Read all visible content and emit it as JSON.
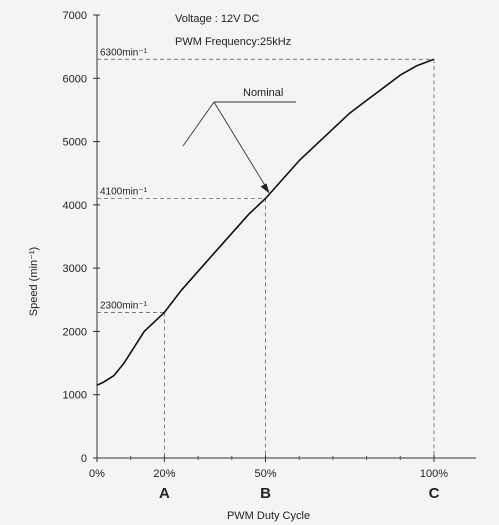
{
  "chart_data": {
    "type": "line",
    "xlabel": "PWM Duty Cycle",
    "ylabel": "Speed (min⁻¹)",
    "xlim": [
      0,
      100
    ],
    "ylim": [
      0,
      7000
    ],
    "x_ticks": [
      {
        "value": 0,
        "label": "0%"
      },
      {
        "value": 20,
        "label": "20%"
      },
      {
        "value": 50,
        "label": "50%"
      },
      {
        "value": 100,
        "label": "100%"
      }
    ],
    "x_minor_ticks": [
      10,
      30,
      40,
      60,
      70,
      80,
      90
    ],
    "y_ticks": [
      0,
      1000,
      2000,
      3000,
      4000,
      5000,
      6000,
      7000
    ],
    "y_tick_labels": [
      "0",
      "1000",
      "2000",
      "3000",
      "4000",
      "5000",
      "6000",
      "7000"
    ],
    "grid": false,
    "conditions": [
      "Voltage : 12V DC",
      "PWM Frequency:25kHz"
    ],
    "series": [
      {
        "x": [
          0,
          2,
          5,
          8,
          11,
          14,
          17,
          20,
          25,
          30,
          35,
          40,
          45,
          50,
          55,
          60,
          65,
          70,
          75,
          80,
          85,
          90,
          95,
          100
        ],
        "y": [
          1150,
          1200,
          1300,
          1500,
          1750,
          2000,
          2150,
          2300,
          2650,
          2950,
          3250,
          3550,
          3850,
          4100,
          4400,
          4700,
          4950,
          5200,
          5450,
          5650,
          5850,
          6050,
          6200,
          6300
        ]
      }
    ],
    "markers": [
      {
        "x": 20,
        "y": 2300,
        "label": "2300min⁻¹",
        "point": "A"
      },
      {
        "x": 50,
        "y": 4100,
        "label": "4100min⁻¹",
        "point": "B"
      },
      {
        "x": 100,
        "y": 6300,
        "label": "6300min⁻¹",
        "point": "C"
      }
    ],
    "annotation": {
      "label": "Nominal",
      "x": 50,
      "y": 4100
    }
  }
}
